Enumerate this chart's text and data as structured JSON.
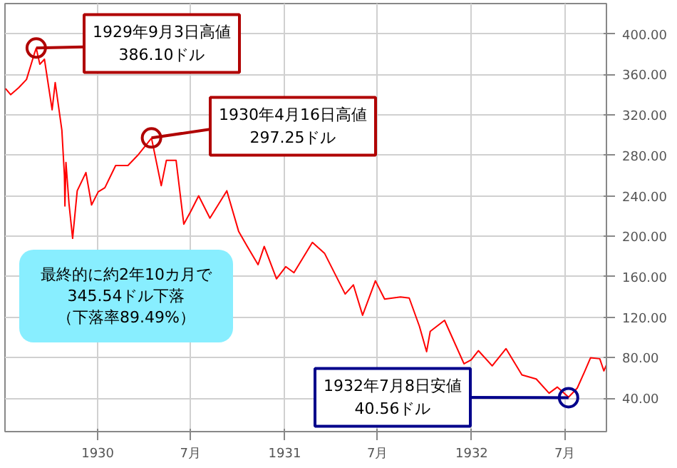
{
  "chart_data": {
    "type": "line",
    "x": [
      "1929-07-05",
      "1929-07-15",
      "1929-07-31",
      "1929-08-15",
      "1929-08-30",
      "1929-09-03",
      "1929-09-10",
      "1929-09-19",
      "1929-10-04",
      "1929-10-10",
      "1929-10-23",
      "1929-10-28",
      "1929-10-29",
      "1929-10-31",
      "1929-11-06",
      "1929-11-13",
      "1929-11-22",
      "1929-12-09",
      "1929-12-20",
      "1930-01-02",
      "1930-01-15",
      "1930-02-05",
      "1930-03-01",
      "1930-03-20",
      "1930-04-16",
      "1930-05-05",
      "1930-05-15",
      "1930-06-03",
      "1930-06-18",
      "1930-07-02",
      "1930-07-17",
      "1930-08-08",
      "1930-09-10",
      "1930-10-03",
      "1930-10-20",
      "1930-11-10",
      "1930-11-22",
      "1930-12-16",
      "1931-01-03",
      "1931-01-19",
      "1931-02-24",
      "1931-03-20",
      "1931-04-29",
      "1931-05-15",
      "1931-06-02",
      "1931-06-27",
      "1931-07-15",
      "1931-08-15",
      "1931-09-01",
      "1931-09-21",
      "1931-10-05",
      "1931-10-12",
      "1931-11-09",
      "1931-12-17",
      "1931-12-31",
      "1932-01-14",
      "1932-02-10",
      "1932-03-08",
      "1932-04-08",
      "1932-05-06",
      "1932-05-31",
      "1932-06-16",
      "1932-07-08",
      "1932-07-25",
      "1932-08-09",
      "1932-08-20",
      "1932-09-07",
      "1932-09-15",
      "1932-09-20"
    ],
    "series": [
      {
        "color": "#ff0000",
        "values": [
          346,
          340,
          347,
          355,
          380,
          386,
          370,
          375,
          325,
          352,
          305,
          260,
          230,
          273,
          232,
          198,
          245,
          263,
          231,
          244,
          248,
          270,
          270,
          280,
          297,
          250,
          275,
          275,
          212,
          225,
          240,
          218,
          245,
          205,
          190,
          172,
          190,
          158,
          170,
          164,
          194,
          183,
          143,
          152,
          122,
          156,
          138,
          140,
          139,
          111,
          86,
          106,
          117,
          74,
          78,
          87,
          72,
          89,
          63,
          59,
          45,
          51,
          41,
          50,
          67,
          80,
          79,
          67,
          73
        ]
      }
    ],
    "xlim": [
      "1929-07-04",
      "1932-09-20"
    ],
    "xticks": [
      {
        "value": "1930-01-01",
        "label": "1930"
      },
      {
        "value": "1930-07-01",
        "label": "7月"
      },
      {
        "value": "1931-01-01",
        "label": "1931"
      },
      {
        "value": "1931-07-01",
        "label": "7月"
      },
      {
        "value": "1932-01-01",
        "label": "1932"
      },
      {
        "value": "1932-07-01",
        "label": "7月"
      }
    ],
    "ylim": [
      7,
      430
    ],
    "yticks": [
      {
        "value": 40,
        "label": "40.00"
      },
      {
        "value": 80,
        "label": "80.00"
      },
      {
        "value": 120,
        "label": "120.00"
      },
      {
        "value": 160,
        "label": "160.00"
      },
      {
        "value": 200,
        "label": "200.00"
      },
      {
        "value": 240,
        "label": "240.00"
      },
      {
        "value": 280,
        "label": "280.00"
      },
      {
        "value": 320,
        "label": "320.00"
      },
      {
        "value": 360,
        "label": "360.00"
      },
      {
        "value": 400,
        "label": "400.00"
      }
    ],
    "grid": true,
    "annotations": [
      {
        "text": "1929年9月3日高値\n386.10ドル",
        "x": "1929-09-03",
        "y": 386.1
      },
      {
        "text": "1930年4月16日高値\n297.25ドル",
        "x": "1930-04-16",
        "y": 297.25
      },
      {
        "text": "1932年7月8日安値\n40.56ドル",
        "x": "1932-07-08",
        "y": 40.56
      },
      "最終的に約2年10カ月で",
      "345.54ドル下落",
      "（下落率89.49%）"
    ]
  }
}
